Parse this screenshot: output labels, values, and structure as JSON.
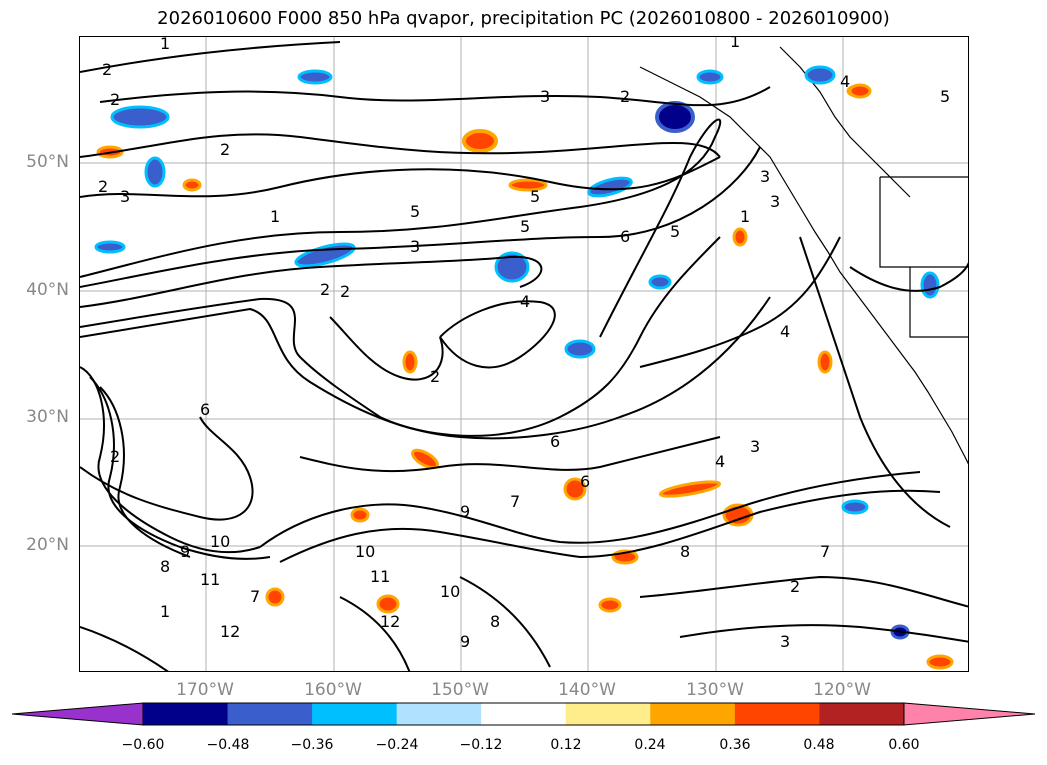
{
  "title": "2026010600 F000 850 hPa qvapor, precipitation PC (2026010800 - 2026010900)",
  "lat_labels": [
    "50°N",
    "40°N",
    "30°N",
    "20°N"
  ],
  "lon_labels": [
    "170°W",
    "160°W",
    "150°W",
    "140°W",
    "130°W",
    "120°W"
  ],
  "colorbar": {
    "ticks": [
      "−0.60",
      "−0.48",
      "−0.36",
      "−0.24",
      "−0.12",
      "0.12",
      "0.24",
      "0.36",
      "0.48",
      "0.60"
    ],
    "colors": [
      "#9932CC",
      "#00008B",
      "#3A5FCD",
      "#00BFFF",
      "#B0E2FF",
      "#FFFFFF",
      "#FFEC8B",
      "#FFA500",
      "#FF4500",
      "#B22222",
      "#FF82AB"
    ]
  },
  "contour_labels": [
    "1",
    "2",
    "2",
    "2",
    "2",
    "3",
    "1",
    "2",
    "1",
    "5",
    "3",
    "5",
    "5",
    "3",
    "2",
    "3",
    "3",
    "2",
    "4",
    "2",
    "4",
    "2",
    "6",
    "3",
    "4",
    "7",
    "8",
    "9",
    "10",
    "11",
    "12",
    "10",
    "9",
    "8",
    "7",
    "6",
    "5",
    "6",
    "8",
    "9",
    "10",
    "11",
    "12",
    "7",
    "6",
    "1",
    "3",
    "2",
    "4",
    "5",
    "1"
  ]
}
